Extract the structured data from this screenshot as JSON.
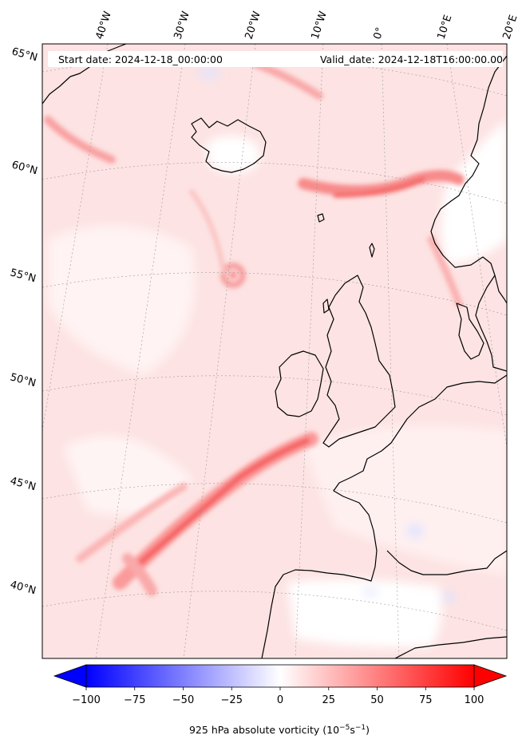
{
  "header": {
    "start_date": "Start date: 2024-12-18_00:00:00",
    "valid_date": "Valid_date: 2024-12-18T16:00:00.00"
  },
  "map": {
    "projection": "polar stereographic",
    "field": "925 hPa absolute vorticity",
    "longitude_labels": [
      "40°W",
      "30°W",
      "20°W",
      "10°W",
      "0°",
      "10°E",
      "20°E"
    ],
    "latitude_labels": [
      "65°N",
      "60°N",
      "55°N",
      "50°N",
      "45°N",
      "40°N"
    ],
    "gridlines": true
  },
  "colorbar": {
    "label": "925 hPa absolute vorticity (10$^{-5}$s$^{-1}$)",
    "label_display": "925 hPa absolute vorticity (10",
    "unit_exp1": "−5",
    "unit_mid": "s",
    "unit_exp2": "−1",
    "unit_close": ")",
    "ticks": [
      "−100",
      "−75",
      "−50",
      "−25",
      "0",
      "25",
      "50",
      "75",
      "100"
    ],
    "tick_values": [
      -100,
      -75,
      -50,
      -25,
      0,
      25,
      50,
      75,
      100
    ],
    "min": -100,
    "max": 100,
    "extend": "both",
    "colormap": "bwr",
    "low_color": "#0000ff",
    "mid_color": "#ffffff",
    "high_color": "#ff0000"
  }
}
